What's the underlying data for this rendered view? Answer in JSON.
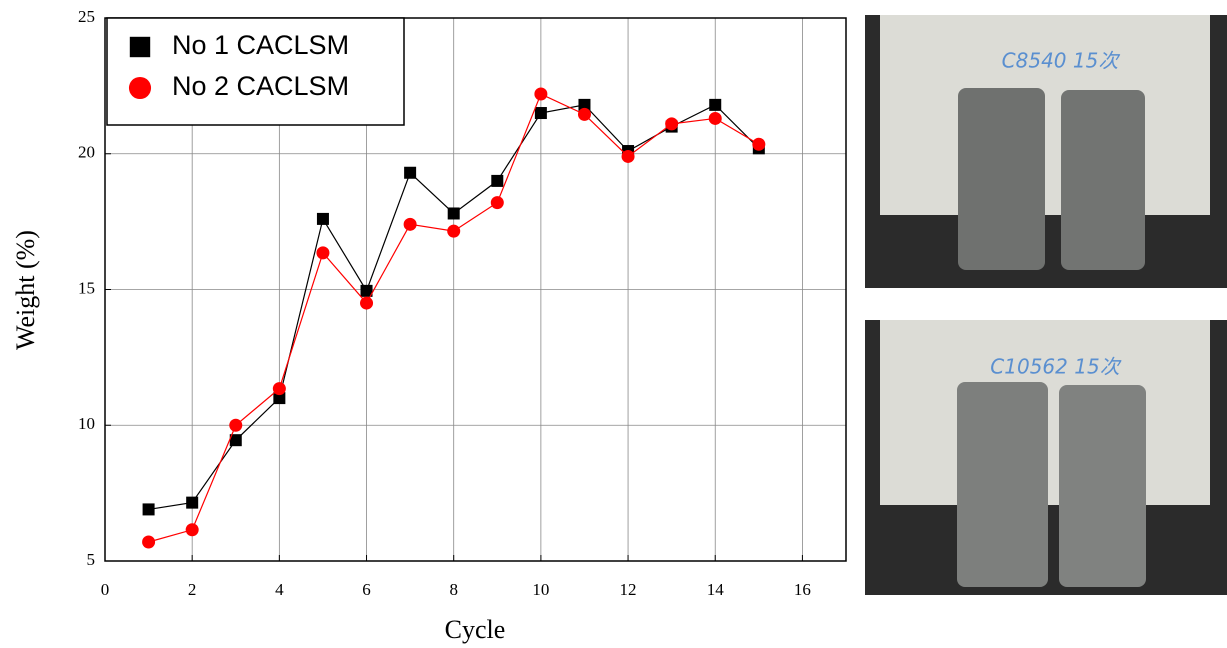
{
  "chart_data": {
    "type": "line",
    "x_label": "Cycle",
    "y_label": "Weight (%)",
    "x": [
      1,
      2,
      3,
      4,
      5,
      6,
      7,
      8,
      9,
      10,
      11,
      12,
      13,
      14,
      15
    ],
    "series": [
      {
        "name": "No 1 CACLSM",
        "color": "#000000",
        "marker": "square",
        "values": [
          6.9,
          7.15,
          9.45,
          11.0,
          17.6,
          14.95,
          19.3,
          17.8,
          19.0,
          21.5,
          21.8,
          20.1,
          21.0,
          21.8,
          20.2
        ]
      },
      {
        "name": "No 2 CACLSM",
        "color": "#ff0000",
        "marker": "circle",
        "values": [
          5.7,
          6.15,
          10.0,
          11.35,
          16.35,
          14.5,
          17.4,
          17.15,
          18.2,
          22.2,
          21.45,
          19.9,
          21.1,
          21.3,
          20.35
        ]
      }
    ],
    "xlim": [
      0,
      17
    ],
    "xticks": [
      0,
      2,
      4,
      6,
      8,
      10,
      12,
      14,
      16
    ],
    "ylim": [
      5,
      25
    ],
    "yticks": [
      5,
      10,
      15,
      20,
      25
    ],
    "grid": true,
    "legend": "top-left"
  },
  "photos": [
    {
      "label": "C8540 15次"
    },
    {
      "label": "C10562 15次"
    }
  ]
}
